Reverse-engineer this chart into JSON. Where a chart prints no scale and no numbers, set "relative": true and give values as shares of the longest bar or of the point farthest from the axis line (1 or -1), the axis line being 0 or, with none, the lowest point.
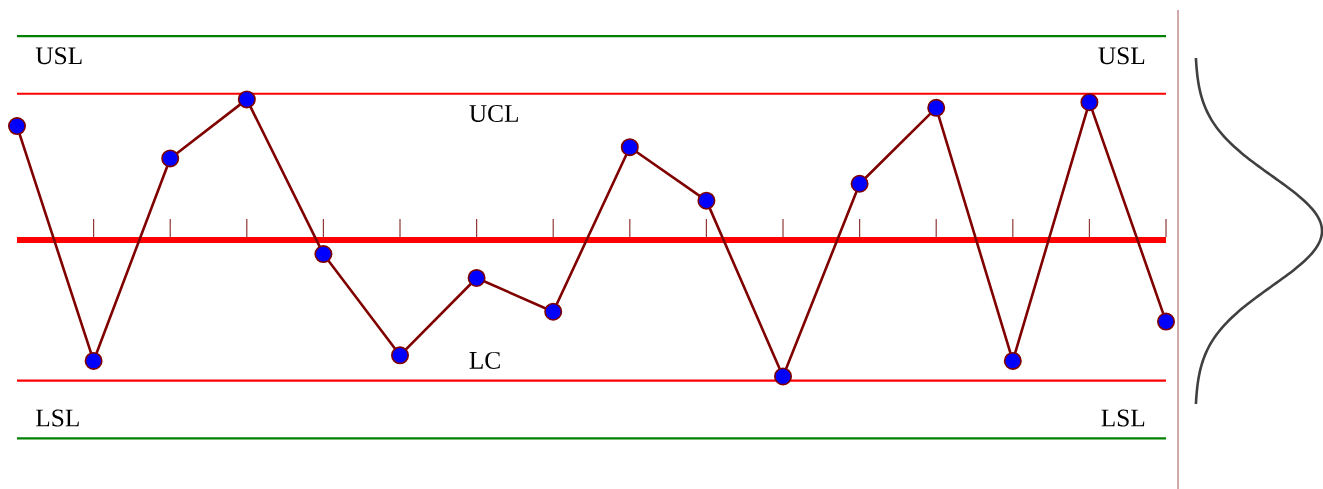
{
  "chart_data": {
    "type": "line",
    "relative": true,
    "categories": [
      null,
      null,
      null,
      null,
      null,
      null,
      null,
      null,
      null,
      null,
      null,
      null,
      null,
      null,
      null,
      null
    ],
    "values": [
      0.81,
      -0.86,
      0.58,
      1,
      -0.1,
      -0.82,
      -0.27,
      -0.51,
      0.66,
      0.28,
      -0.97,
      0.4,
      0.94,
      -0.86,
      0.98,
      -0.58
    ],
    "color": "#800000",
    "marker": "circle",
    "line_style": "solid",
    "ref_lines": [
      {
        "axis": "y",
        "value": 1.45,
        "label": "USL",
        "color": "#008000"
      },
      {
        "axis": "y",
        "value": 1.04,
        "label": "UCL",
        "color": "#ff0000"
      },
      {
        "axis": "y",
        "value": 0,
        "color": "#ff0000"
      },
      {
        "axis": "y",
        "value": -1.0,
        "label": "LC",
        "color": "#ff0000"
      },
      {
        "axis": "y",
        "value": -1.41,
        "label": "LSL",
        "color": "#008000"
      }
    ]
  }
}
